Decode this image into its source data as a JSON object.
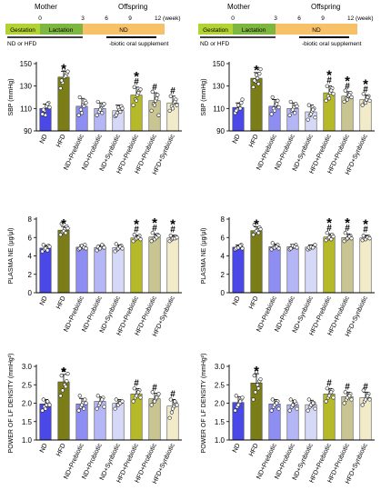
{
  "colors": {
    "gestation": "#b3d334",
    "lactation": "#7db73f",
    "nd_period": "#f7c16a",
    "bars": [
      "#4a48e6",
      "#7a7d18",
      "#8e8ef2",
      "#b5b6f5",
      "#d6d8f7",
      "#b6ba2a",
      "#c9c592",
      "#f1ebc9"
    ],
    "dot_fill": "#ffffff",
    "star_color": "#000000"
  },
  "timelines": [
    {
      "mother_label": "Mother",
      "offspring_label": "Offspring",
      "ticks": [
        "0",
        "3",
        "6",
        "9",
        "12 (week)"
      ],
      "gestation_label": "Gestation",
      "lactation_label": "Lactation",
      "nd_label": "ND",
      "diet_label": "ND or HFD",
      "supplement_label": "-biotic oral supplement"
    },
    {
      "mother_label": "Mother",
      "offspring_label": "Offspring",
      "ticks": [
        "0",
        "3",
        "6",
        "9",
        "12 (week)"
      ],
      "gestation_label": "Gestation",
      "lactation_label": "Lactation",
      "nd_label": "ND",
      "diet_label": "ND or HFD",
      "supplement_label": "-biotic oral supplement"
    }
  ],
  "chart_data": [
    {
      "type": "bar",
      "categories": [
        "ND",
        "HFD",
        "ND+Prebiotic",
        "ND+Probiotic",
        "ND+Synbiotic",
        "HFD+Prebiotic",
        "HFD+Probiotic",
        "HFD+Synbiotic"
      ],
      "values": [
        110,
        138,
        112,
        110,
        108,
        122,
        117,
        115
      ],
      "errors": [
        4,
        5,
        7,
        5,
        5,
        7,
        7,
        6
      ],
      "ylabel": "SBP (mmHg)",
      "ylim": [
        90,
        150
      ],
      "yticks": [
        "90",
        "110",
        "130",
        "150"
      ],
      "annotations": [
        "",
        "*",
        "",
        "",
        "",
        "*\n#",
        "#",
        "#"
      ],
      "points": [
        [
          105,
          108,
          112,
          115,
          109,
          104,
          114,
          111
        ],
        [
          128,
          133,
          138,
          141,
          135,
          145,
          139,
          143
        ],
        [
          104,
          109,
          113,
          117,
          120,
          106,
          112,
          115
        ],
        [
          104,
          107,
          110,
          113,
          116,
          109,
          106,
          114
        ],
        [
          103,
          106,
          109,
          112,
          104,
          111,
          107,
          110
        ],
        [
          113,
          118,
          122,
          126,
          129,
          117,
          124,
          127
        ],
        [
          108,
          114,
          117,
          122,
          125,
          113,
          119,
          104
        ],
        [
          108,
          112,
          115,
          118,
          121,
          110,
          116,
          113
        ]
      ]
    },
    {
      "type": "bar",
      "categories": [
        "ND",
        "HFD",
        "ND+Prebiotic",
        "ND+Probiotic",
        "ND+Synbiotic",
        "HFD+Prebiotic",
        "HFD+Probiotic",
        "HFD+Synbiotic"
      ],
      "values": [
        111,
        137,
        112,
        110,
        107,
        124,
        121,
        118
      ],
      "errors": [
        4,
        5,
        6,
        5,
        6,
        6,
        4,
        4
      ],
      "ylabel": "SBP (mmHg)",
      "ylim": [
        90,
        150
      ],
      "yticks": [
        "90",
        "110",
        "130",
        "150"
      ],
      "annotations": [
        "",
        "*",
        "",
        "",
        "",
        "*\n#",
        "*\n#",
        "*\n#"
      ],
      "points": [
        [
          106,
          109,
          112,
          115,
          108,
          113,
          110,
          118
        ],
        [
          129,
          134,
          137,
          141,
          135,
          140,
          132,
          145
        ],
        [
          105,
          110,
          113,
          117,
          120,
          108,
          114,
          111
        ],
        [
          104,
          108,
          111,
          114,
          116,
          109,
          106,
          112
        ],
        [
          100,
          104,
          107,
          110,
          113,
          105,
          109,
          102
        ],
        [
          117,
          121,
          124,
          128,
          130,
          119,
          126,
          123
        ],
        [
          116,
          119,
          121,
          124,
          126,
          118,
          122,
          120
        ],
        [
          113,
          116,
          118,
          121,
          123,
          115,
          120,
          117
        ]
      ]
    },
    {
      "type": "bar",
      "categories": [
        "ND",
        "HFD",
        "ND+Prebiotic",
        "ND+Probiotic",
        "ND+Synbiotic",
        "HFD+Prebiotic",
        "HFD+Probiotic",
        "HFD+Synbiotic"
      ],
      "values": [
        4.85,
        6.8,
        4.95,
        4.9,
        4.9,
        5.95,
        6.05,
        5.95
      ],
      "errors": [
        0.3,
        0.4,
        0.25,
        0.25,
        0.3,
        0.3,
        0.35,
        0.3
      ],
      "ylabel": "PLASMA NE (μg/μl)",
      "ylim": [
        0,
        8
      ],
      "yticks": [
        "0",
        "2",
        "4",
        "6",
        "8"
      ],
      "annotations": [
        "",
        "*",
        "",
        "",
        "",
        "*\n#",
        "*\n#",
        "*\n#"
      ],
      "points": [
        [
          4.5,
          4.7,
          4.9,
          5.1,
          5.2,
          4.8,
          4.6,
          5.0
        ],
        [
          6.3,
          6.6,
          6.9,
          7.2,
          7.5,
          6.7,
          6.5,
          7.0
        ],
        [
          4.7,
          4.9,
          5.0,
          5.2,
          4.8,
          5.1,
          4.9,
          4.8
        ],
        [
          4.6,
          4.8,
          4.9,
          5.1,
          5.0,
          4.8,
          5.2,
          4.9
        ],
        [
          4.5,
          4.7,
          4.9,
          5.1,
          5.3,
          4.8,
          5.0,
          4.8
        ],
        [
          5.6,
          5.8,
          6.0,
          6.2,
          6.3,
          5.9,
          6.0,
          5.8
        ],
        [
          5.6,
          5.9,
          6.1,
          6.3,
          6.5,
          5.8,
          6.0,
          6.2
        ],
        [
          5.6,
          5.8,
          6.0,
          6.1,
          6.2,
          5.9,
          5.9,
          6.0
        ]
      ]
    },
    {
      "type": "bar",
      "categories": [
        "ND",
        "HFD",
        "ND+Prebiotic",
        "ND+Probiotic",
        "ND+Synbiotic",
        "HFD+Prebiotic",
        "HFD+Probiotic",
        "HFD+Synbiotic"
      ],
      "values": [
        4.95,
        6.75,
        5.0,
        5.0,
        4.95,
        6.05,
        6.0,
        5.95
      ],
      "errors": [
        0.25,
        0.4,
        0.3,
        0.25,
        0.25,
        0.35,
        0.4,
        0.3
      ],
      "ylabel": "PLASMA NE (μg/μl)",
      "ylim": [
        0,
        8
      ],
      "yticks": [
        "0",
        "2",
        "4",
        "6",
        "8"
      ],
      "annotations": [
        "",
        "*",
        "",
        "",
        "",
        "*\n#",
        "*\n#",
        "*\n#"
      ],
      "points": [
        [
          4.7,
          4.9,
          5.0,
          5.2,
          4.8,
          4.9,
          5.1,
          4.8
        ],
        [
          6.3,
          6.6,
          6.8,
          7.1,
          7.4,
          6.7,
          6.5,
          6.9
        ],
        [
          4.7,
          4.9,
          5.0,
          5.2,
          5.4,
          4.9,
          5.0,
          4.8
        ],
        [
          4.7,
          4.9,
          5.0,
          5.2,
          4.8,
          5.1,
          5.0,
          4.9
        ],
        [
          4.7,
          4.8,
          5.0,
          5.1,
          4.9,
          5.0,
          4.9,
          5.2
        ],
        [
          5.7,
          5.9,
          6.1,
          6.3,
          6.5,
          6.0,
          5.8,
          6.1
        ],
        [
          5.6,
          5.8,
          6.0,
          6.2,
          6.5,
          5.9,
          6.1,
          5.9
        ],
        [
          5.7,
          5.9,
          6.0,
          6.1,
          6.2,
          5.8,
          6.0,
          5.9
        ]
      ]
    },
    {
      "type": "bar",
      "categories": [
        "ND",
        "HFD",
        "ND+Prebiotic",
        "ND+Probiotic",
        "ND+Synbiotic",
        "HFD+Prebiotic",
        "HFD+Probiotic",
        "HFD+Synbiotic"
      ],
      "values": [
        1.98,
        2.58,
        1.98,
        2.05,
        2.0,
        2.25,
        2.12,
        1.92
      ],
      "errors": [
        0.12,
        0.2,
        0.15,
        0.12,
        0.1,
        0.15,
        0.15,
        0.18
      ],
      "ylabel": "POWER OF LF DENSITY (mmHg²)",
      "ylim": [
        1.0,
        3.0
      ],
      "yticks": [
        "1.0",
        "1.5",
        "2.0",
        "2.5",
        "3.0"
      ],
      "annotations": [
        "",
        "*",
        "",
        "",
        "",
        "#",
        "#",
        "#"
      ],
      "points": [
        [
          1.8,
          1.9,
          1.95,
          2.0,
          2.1,
          1.85,
          2.05,
          1.95
        ],
        [
          2.2,
          2.35,
          2.5,
          2.6,
          2.75,
          2.9,
          2.45,
          2.8
        ],
        [
          1.8,
          1.9,
          2.0,
          2.1,
          2.2,
          1.95,
          1.85,
          2.0
        ],
        [
          1.85,
          1.95,
          2.05,
          2.15,
          2.2,
          2.0,
          2.1,
          1.9
        ],
        [
          1.85,
          1.95,
          2.0,
          2.05,
          2.1,
          1.95,
          2.0,
          2.05
        ],
        [
          2.05,
          2.15,
          2.25,
          2.35,
          2.4,
          2.2,
          2.3,
          2.15
        ],
        [
          1.95,
          2.05,
          2.1,
          2.2,
          2.3,
          2.05,
          2.15,
          2.25
        ],
        [
          1.6,
          1.75,
          1.9,
          2.0,
          2.1,
          1.85,
          2.05,
          1.95
        ]
      ]
    },
    {
      "type": "bar",
      "categories": [
        "ND",
        "HFD",
        "ND+Prebiotic",
        "ND+Probiotic",
        "ND+Synbiotic",
        "HFD+Prebiotic",
        "HFD+Probiotic",
        "HFD+Synbiotic"
      ],
      "values": [
        2.02,
        2.55,
        1.98,
        1.96,
        1.96,
        2.25,
        2.18,
        2.15
      ],
      "errors": [
        0.15,
        0.25,
        0.12,
        0.12,
        0.12,
        0.15,
        0.12,
        0.15
      ],
      "ylabel": "POWER OF LF DENSITY (mmHg²)",
      "ylim": [
        1.0,
        3.0
      ],
      "yticks": [
        "1.0",
        "1.5",
        "2.0",
        "2.5",
        "3.0"
      ],
      "annotations": [
        "",
        "*",
        "",
        "",
        "",
        "#",
        "#",
        "#"
      ],
      "points": [
        [
          1.8,
          1.9,
          2.0,
          2.1,
          2.2,
          1.95,
          2.05,
          2.15
        ],
        [
          2.1,
          2.3,
          2.5,
          2.6,
          2.75,
          2.85,
          2.4,
          2.65
        ],
        [
          1.8,
          1.9,
          2.0,
          2.05,
          2.1,
          1.95,
          2.0,
          1.85
        ],
        [
          1.8,
          1.9,
          1.95,
          2.0,
          2.1,
          1.95,
          2.05,
          1.85
        ],
        [
          1.8,
          1.9,
          1.95,
          2.0,
          2.1,
          1.95,
          2.0,
          1.85
        ],
        [
          2.05,
          2.15,
          2.25,
          2.35,
          2.4,
          2.2,
          2.3,
          2.15
        ],
        [
          2.0,
          2.1,
          2.2,
          2.25,
          2.3,
          2.15,
          2.2,
          2.1
        ],
        [
          1.95,
          2.05,
          2.15,
          2.25,
          2.35,
          2.1,
          2.2,
          2.1
        ]
      ]
    }
  ]
}
